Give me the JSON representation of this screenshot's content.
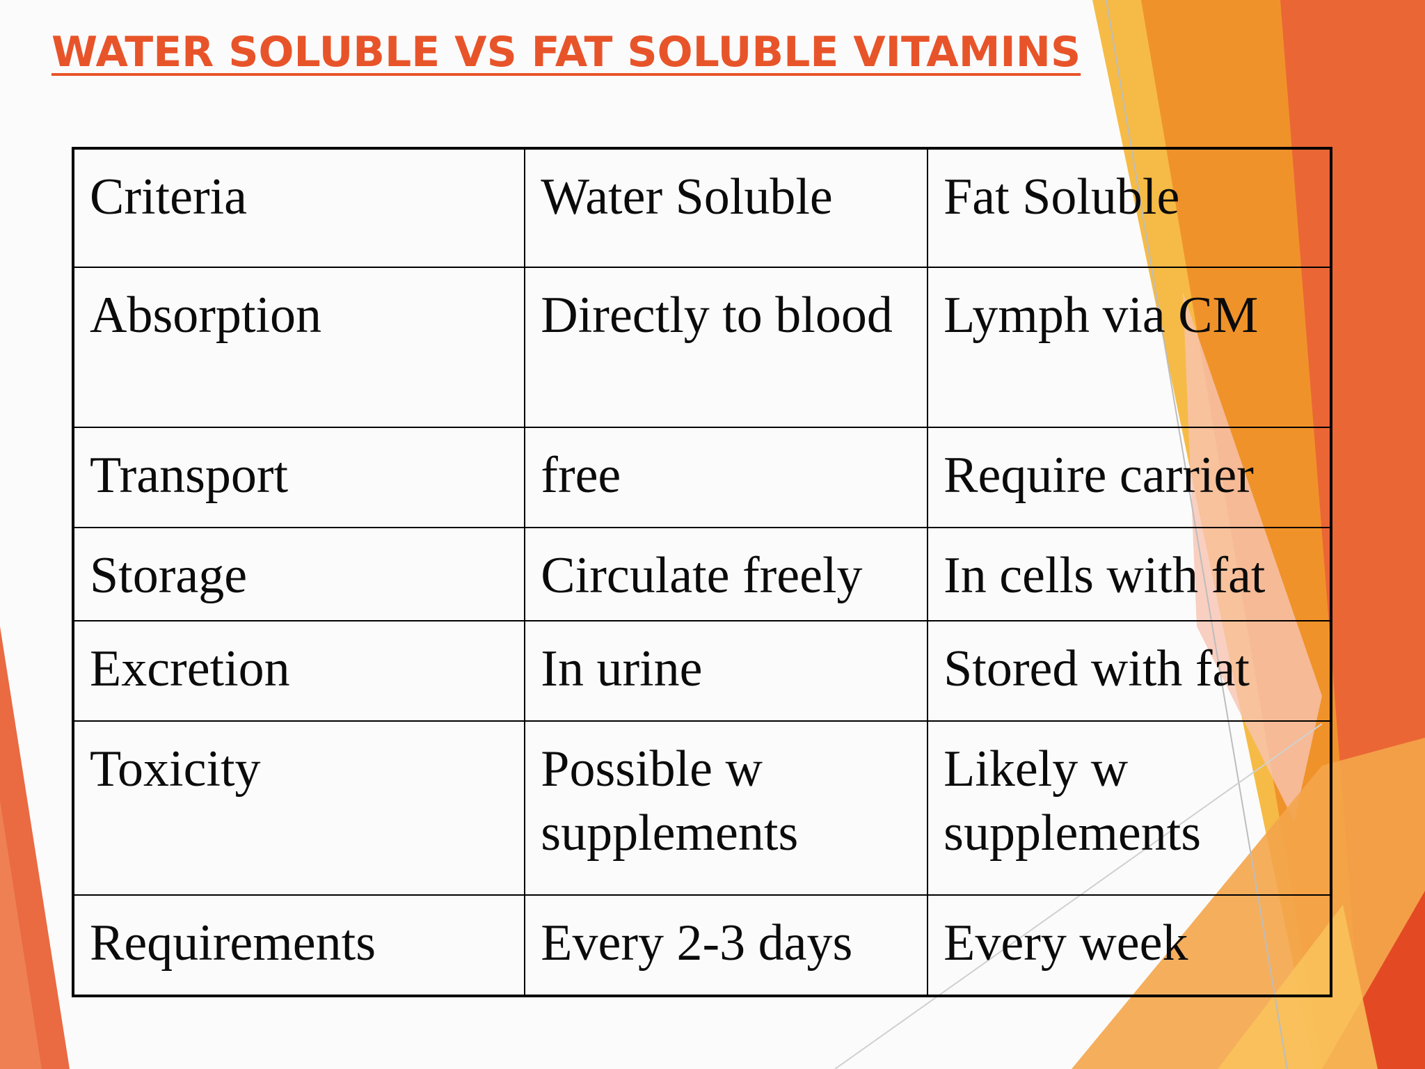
{
  "slide": {
    "title": "WATER SOLUBLE VS FAT SOLUBLE VITAMINS"
  },
  "table": {
    "header": [
      "Criteria",
      "Water Soluble",
      "Fat Soluble"
    ],
    "rows": [
      [
        "Absorption",
        "Directly to blood",
        "Lymph via CM"
      ],
      [
        "Transport",
        "free",
        "Require carrier"
      ],
      [
        "Storage",
        "Circulate freely",
        "In cells with fat"
      ],
      [
        "Excretion",
        "In urine",
        "Stored with fat"
      ],
      [
        "Toxicity",
        "Possible w supplements",
        "Likely w supplements"
      ],
      [
        "Requirements",
        "Every 2-3 days",
        "Every week"
      ]
    ]
  },
  "colors": {
    "title": "#e8542a",
    "accent_orange": "#f0922a",
    "accent_yellow": "#f6b73c",
    "accent_red": "#e34a23"
  }
}
